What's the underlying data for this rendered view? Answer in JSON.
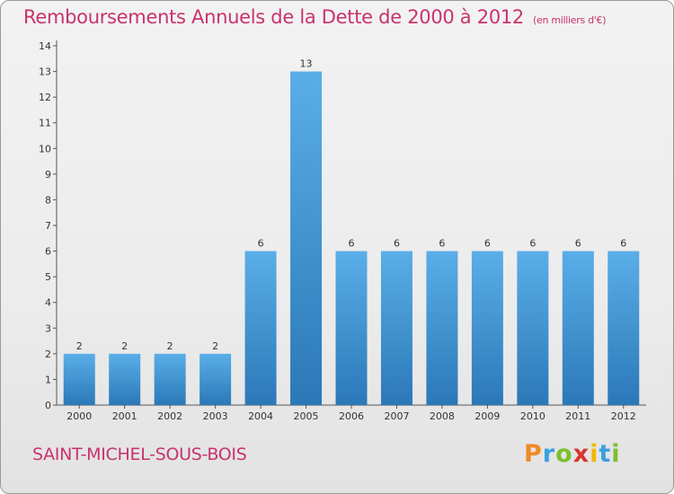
{
  "chart_data": {
    "type": "bar",
    "title": "Remboursements Annuels de la Dette de 2000 à 2012",
    "subtitle": "(en milliers d'€)",
    "categories": [
      "2000",
      "2001",
      "2002",
      "2003",
      "2004",
      "2005",
      "2006",
      "2007",
      "2008",
      "2009",
      "2010",
      "2011",
      "2012"
    ],
    "values": [
      2,
      2,
      2,
      2,
      6,
      13,
      6,
      6,
      6,
      6,
      6,
      6,
      6
    ],
    "ylim": [
      0,
      14
    ],
    "yticks": [
      0,
      1,
      2,
      3,
      4,
      5,
      6,
      7,
      8,
      9,
      10,
      11,
      12,
      13,
      14
    ],
    "bar_color": "#3a94d8",
    "grid": false
  },
  "footer": {
    "city": "SAINT-MICHEL-SOUS-BOIS",
    "logo_letters": [
      "P",
      "r",
      "o",
      "x",
      "i",
      "t",
      "i"
    ],
    "logo_colors": [
      "#f08a24",
      "#3aa0e0",
      "#7cbf2e",
      "#d8352e",
      "#f0b800",
      "#3aa0e0",
      "#7cbf2e"
    ]
  },
  "colors": {
    "title": "#c8336d",
    "axis": "#555555"
  }
}
